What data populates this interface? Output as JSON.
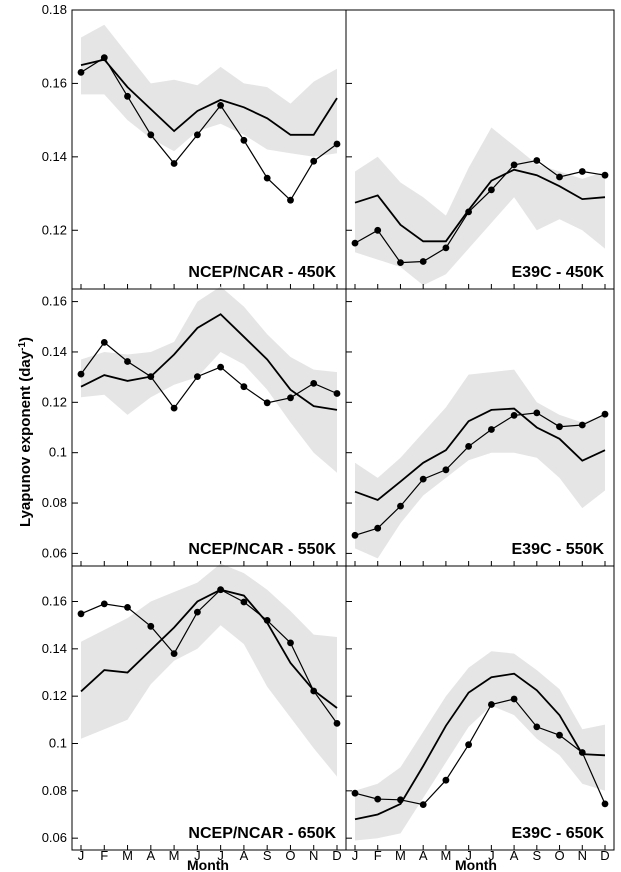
{
  "figure": {
    "ylabel": "Lyapunov exponent (day",
    "ylabel_sup": "-1",
    "ylabel_close": ")",
    "xlabel": "Month"
  },
  "chart_data": [
    {
      "type": "line",
      "label": "NCEP/NCAR - 450K",
      "row": 0,
      "col": 0,
      "x": [
        "J",
        "F",
        "M",
        "A",
        "M",
        "J",
        "J",
        "A",
        "S",
        "O",
        "N",
        "D"
      ],
      "ylim": [
        0.104,
        0.18
      ],
      "yticks": [
        0.12,
        0.14,
        0.16,
        0.18
      ],
      "ytick_labels": [
        "0.12",
        "0.14",
        "0.16",
        "0.18"
      ],
      "series": [
        {
          "values": [
            0.163,
            0.167,
            0.1565,
            0.146,
            0.1382,
            0.146,
            0.154,
            0.1445,
            0.1342,
            0.1282,
            0.1388,
            0.1435
          ],
          "markers": true
        },
        {
          "values": [
            0.165,
            0.1665,
            0.159,
            0.153,
            0.147,
            0.1525,
            0.1555,
            0.1535,
            0.1505,
            0.146,
            0.146,
            0.156
          ],
          "markers": false
        }
      ],
      "band": {
        "upper": [
          0.1725,
          0.176,
          0.168,
          0.16,
          0.161,
          0.1595,
          0.1645,
          0.16,
          0.159,
          0.1545,
          0.1605,
          0.164
        ],
        "lower": [
          0.157,
          0.157,
          0.15,
          0.145,
          0.1415,
          0.147,
          0.149,
          0.146,
          0.142,
          0.141,
          0.14,
          0.141
        ]
      }
    },
    {
      "type": "line",
      "label": "E39C - 450K",
      "row": 0,
      "col": 1,
      "x": [
        "J",
        "F",
        "M",
        "A",
        "M",
        "J",
        "J",
        "A",
        "S",
        "O",
        "N",
        "D"
      ],
      "ylim": [
        0.104,
        0.18
      ],
      "yticks": [
        0.12,
        0.14,
        0.16,
        0.18
      ],
      "ytick_labels": [
        "",
        "",
        "",
        ""
      ],
      "series": [
        {
          "values": [
            0.1165,
            0.12,
            0.1112,
            0.1115,
            0.1152,
            0.125,
            0.131,
            0.1378,
            0.139,
            0.1345,
            0.136,
            0.135
          ],
          "markers": true
        },
        {
          "values": [
            0.1275,
            0.1295,
            0.1215,
            0.117,
            0.117,
            0.1255,
            0.1335,
            0.1365,
            0.135,
            0.132,
            0.1285,
            0.129
          ],
          "markers": false
        }
      ],
      "band": {
        "upper": [
          0.136,
          0.14,
          0.133,
          0.129,
          0.124,
          0.137,
          0.148,
          0.143,
          0.138,
          0.136,
          0.134,
          0.136
        ],
        "lower": [
          0.114,
          0.112,
          0.11,
          0.105,
          0.108,
          0.115,
          0.122,
          0.129,
          0.12,
          0.123,
          0.12,
          0.115
        ]
      }
    },
    {
      "type": "line",
      "label": "NCEP/NCAR - 550K",
      "row": 1,
      "col": 0,
      "x": [
        "J",
        "F",
        "M",
        "A",
        "M",
        "J",
        "J",
        "A",
        "S",
        "O",
        "N",
        "D"
      ],
      "ylim": [
        0.055,
        0.165
      ],
      "yticks": [
        0.06,
        0.08,
        0.1,
        0.12,
        0.14,
        0.16
      ],
      "ytick_labels": [
        "0.06",
        "0.08",
        "0.1",
        "0.12",
        "0.14",
        "0.16"
      ],
      "series": [
        {
          "values": [
            0.1312,
            0.1438,
            0.1362,
            0.1302,
            0.1177,
            0.1302,
            0.134,
            0.1262,
            0.1198,
            0.1218,
            0.1275,
            0.1235
          ],
          "markers": true
        },
        {
          "values": [
            0.1262,
            0.1308,
            0.1285,
            0.1302,
            0.139,
            0.1495,
            0.155,
            0.146,
            0.137,
            0.125,
            0.1185,
            0.117
          ],
          "markers": false
        }
      ],
      "band": {
        "upper": [
          0.137,
          0.14,
          0.139,
          0.14,
          0.144,
          0.16,
          0.166,
          0.158,
          0.147,
          0.138,
          0.133,
          0.132
        ],
        "lower": [
          0.122,
          0.123,
          0.115,
          0.122,
          0.127,
          0.13,
          0.14,
          0.135,
          0.125,
          0.112,
          0.1,
          0.092
        ]
      }
    },
    {
      "type": "line",
      "label": "E39C - 550K",
      "row": 1,
      "col": 1,
      "x": [
        "J",
        "F",
        "M",
        "A",
        "M",
        "J",
        "J",
        "A",
        "S",
        "O",
        "N",
        "D"
      ],
      "ylim": [
        0.055,
        0.165
      ],
      "yticks": [
        0.06,
        0.08,
        0.1,
        0.12,
        0.14,
        0.16
      ],
      "ytick_labels": [
        "",
        "",
        "",
        "",
        "",
        ""
      ],
      "series": [
        {
          "values": [
            0.0672,
            0.07,
            0.0788,
            0.0895,
            0.0932,
            0.1025,
            0.1092,
            0.1148,
            0.1158,
            0.1103,
            0.111,
            0.1153
          ],
          "markers": true
        },
        {
          "values": [
            0.0845,
            0.0812,
            0.0885,
            0.096,
            0.101,
            0.1125,
            0.117,
            0.1175,
            0.11,
            0.1055,
            0.0968,
            0.101
          ],
          "markers": false
        }
      ],
      "band": {
        "upper": [
          0.096,
          0.09,
          0.098,
          0.108,
          0.118,
          0.131,
          0.132,
          0.133,
          0.12,
          0.115,
          0.112,
          0.115
        ],
        "lower": [
          0.062,
          0.058,
          0.072,
          0.083,
          0.09,
          0.097,
          0.1,
          0.1,
          0.098,
          0.09,
          0.078,
          0.085
        ]
      }
    },
    {
      "type": "line",
      "label": "NCEP/NCAR - 650K",
      "row": 2,
      "col": 0,
      "x": [
        "J",
        "F",
        "M",
        "A",
        "M",
        "J",
        "J",
        "A",
        "S",
        "O",
        "N",
        "D"
      ],
      "ylim": [
        0.055,
        0.175
      ],
      "yticks": [
        0.06,
        0.08,
        0.1,
        0.12,
        0.14,
        0.16
      ],
      "ytick_labels": [
        "0.06",
        "0.08",
        "0.1",
        "0.12",
        "0.14",
        "0.16"
      ],
      "series": [
        {
          "values": [
            0.1548,
            0.159,
            0.1575,
            0.1495,
            0.138,
            0.1555,
            0.165,
            0.1598,
            0.152,
            0.1425,
            0.1222,
            0.1085
          ],
          "markers": true
        },
        {
          "values": [
            0.122,
            0.131,
            0.13,
            0.1395,
            0.149,
            0.16,
            0.165,
            0.1625,
            0.151,
            0.134,
            0.1225,
            0.115
          ],
          "markers": false
        }
      ],
      "band": {
        "upper": [
          0.143,
          0.148,
          0.153,
          0.16,
          0.164,
          0.168,
          0.176,
          0.172,
          0.165,
          0.156,
          0.146,
          0.145
        ],
        "lower": [
          0.102,
          0.106,
          0.11,
          0.125,
          0.135,
          0.14,
          0.15,
          0.142,
          0.124,
          0.111,
          0.098,
          0.086
        ]
      }
    },
    {
      "type": "line",
      "label": "E39C - 650K",
      "row": 2,
      "col": 1,
      "x": [
        "J",
        "F",
        "M",
        "A",
        "M",
        "J",
        "J",
        "A",
        "S",
        "O",
        "N",
        "D"
      ],
      "ylim": [
        0.055,
        0.175
      ],
      "yticks": [
        0.06,
        0.08,
        0.1,
        0.12,
        0.14,
        0.16
      ],
      "ytick_labels": [
        "",
        "",
        "",
        "",
        "",
        ""
      ],
      "series": [
        {
          "values": [
            0.079,
            0.0765,
            0.0762,
            0.0742,
            0.0845,
            0.0995,
            0.1165,
            0.1188,
            0.107,
            0.1035,
            0.0962,
            0.0745
          ],
          "markers": true
        },
        {
          "values": [
            0.068,
            0.07,
            0.0745,
            0.0905,
            0.1075,
            0.1215,
            0.128,
            0.1295,
            0.1225,
            0.112,
            0.0955,
            0.095
          ],
          "markers": false
        }
      ],
      "band": {
        "upper": [
          0.08,
          0.083,
          0.09,
          0.105,
          0.12,
          0.132,
          0.139,
          0.138,
          0.131,
          0.123,
          0.106,
          0.108
        ],
        "lower": [
          0.059,
          0.06,
          0.062,
          0.077,
          0.092,
          0.107,
          0.116,
          0.112,
          0.102,
          0.095,
          0.083,
          0.08
        ]
      }
    }
  ]
}
